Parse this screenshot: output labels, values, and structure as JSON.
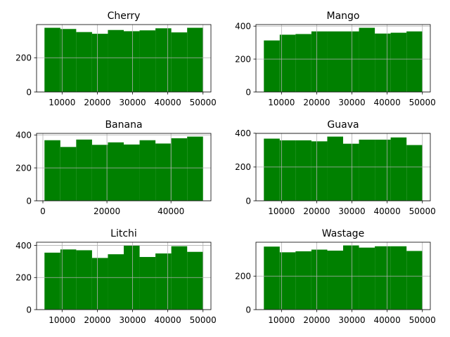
{
  "colors": {
    "bar": "#008000",
    "grid": "#b0b0b0",
    "axis": "#000000",
    "background": "#ffffff"
  },
  "chart_data": [
    {
      "type": "bar",
      "title": "Cherry",
      "bin_edges": [
        5000,
        9500,
        14000,
        18500,
        23000,
        27500,
        32000,
        36500,
        41000,
        45500,
        50000
      ],
      "values": [
        375,
        368,
        350,
        340,
        362,
        355,
        360,
        372,
        348,
        375
      ],
      "xlim": [
        2750,
        52250
      ],
      "ylim": [
        0,
        393.75
      ],
      "xticks": [
        10000,
        20000,
        30000,
        40000,
        50000
      ],
      "xtick_labels": [
        "10000",
        "20000",
        "30000",
        "40000",
        "50000"
      ],
      "yticks": [
        0,
        200
      ],
      "ytick_labels": [
        "0",
        "200"
      ],
      "grid": true
    },
    {
      "type": "bar",
      "title": "Mango",
      "bin_edges": [
        5000,
        9500,
        14000,
        18500,
        23000,
        27500,
        32000,
        36500,
        41000,
        45500,
        50000
      ],
      "values": [
        313,
        348,
        352,
        368,
        368,
        368,
        390,
        355,
        360,
        368
      ],
      "xlim": [
        2750,
        52250
      ],
      "ylim": [
        0,
        409.5
      ],
      "xticks": [
        10000,
        20000,
        30000,
        40000,
        50000
      ],
      "xtick_labels": [
        "10000",
        "20000",
        "30000",
        "40000",
        "50000"
      ],
      "yticks": [
        0,
        200,
        400
      ],
      "ytick_labels": [
        "0",
        "200",
        "400"
      ],
      "grid": true
    },
    {
      "type": "bar",
      "title": "Banana",
      "bin_edges": [
        500,
        5450,
        10400,
        15350,
        20300,
        25250,
        30200,
        35150,
        40100,
        45050,
        50000
      ],
      "values": [
        368,
        327,
        372,
        340,
        355,
        342,
        368,
        348,
        380,
        390
      ],
      "xlim": [
        -1975,
        52475
      ],
      "ylim": [
        0,
        409.5
      ],
      "xticks": [
        0,
        20000,
        40000
      ],
      "xtick_labels": [
        "0",
        "20000",
        "40000"
      ],
      "yticks": [
        0,
        200,
        400
      ],
      "ytick_labels": [
        "0",
        "200",
        "400"
      ],
      "grid": true
    },
    {
      "type": "bar",
      "title": "Guava",
      "bin_edges": [
        5000,
        9500,
        14000,
        18500,
        23000,
        27500,
        32000,
        36500,
        41000,
        45500,
        50000
      ],
      "values": [
        368,
        358,
        358,
        352,
        380,
        338,
        362,
        362,
        375,
        330
      ],
      "xlim": [
        2750,
        52250
      ],
      "ylim": [
        0,
        399
      ],
      "xticks": [
        10000,
        20000,
        30000,
        40000,
        50000
      ],
      "xtick_labels": [
        "10000",
        "20000",
        "30000",
        "40000",
        "50000"
      ],
      "yticks": [
        0,
        200,
        400
      ],
      "ytick_labels": [
        "0",
        "200",
        "400"
      ],
      "grid": true
    },
    {
      "type": "bar",
      "title": "Litchi",
      "bin_edges": [
        5000,
        9500,
        14000,
        18500,
        23000,
        27500,
        32000,
        36500,
        41000,
        45500,
        50000
      ],
      "values": [
        355,
        375,
        370,
        322,
        345,
        400,
        328,
        350,
        395,
        360
      ],
      "xlim": [
        2750,
        52250
      ],
      "ylim": [
        0,
        420
      ],
      "xticks": [
        10000,
        20000,
        30000,
        40000,
        50000
      ],
      "xtick_labels": [
        "10000",
        "20000",
        "30000",
        "40000",
        "50000"
      ],
      "yticks": [
        0,
        200,
        400
      ],
      "ytick_labels": [
        "0",
        "200",
        "400"
      ],
      "grid": true
    },
    {
      "type": "bar",
      "title": "Wastage",
      "bin_edges": [
        5000,
        9500,
        14000,
        18500,
        23000,
        27500,
        32000,
        36500,
        41000,
        45500,
        50000
      ],
      "values": [
        376,
        342,
        348,
        358,
        352,
        383,
        370,
        378,
        378,
        350
      ],
      "xlim": [
        2750,
        52250
      ],
      "ylim": [
        0,
        402.15
      ],
      "xticks": [
        10000,
        20000,
        30000,
        40000,
        50000
      ],
      "xtick_labels": [
        "10000",
        "20000",
        "30000",
        "40000",
        "50000"
      ],
      "yticks": [
        0,
        200
      ],
      "ytick_labels": [
        "0",
        "200"
      ],
      "grid": true
    }
  ]
}
